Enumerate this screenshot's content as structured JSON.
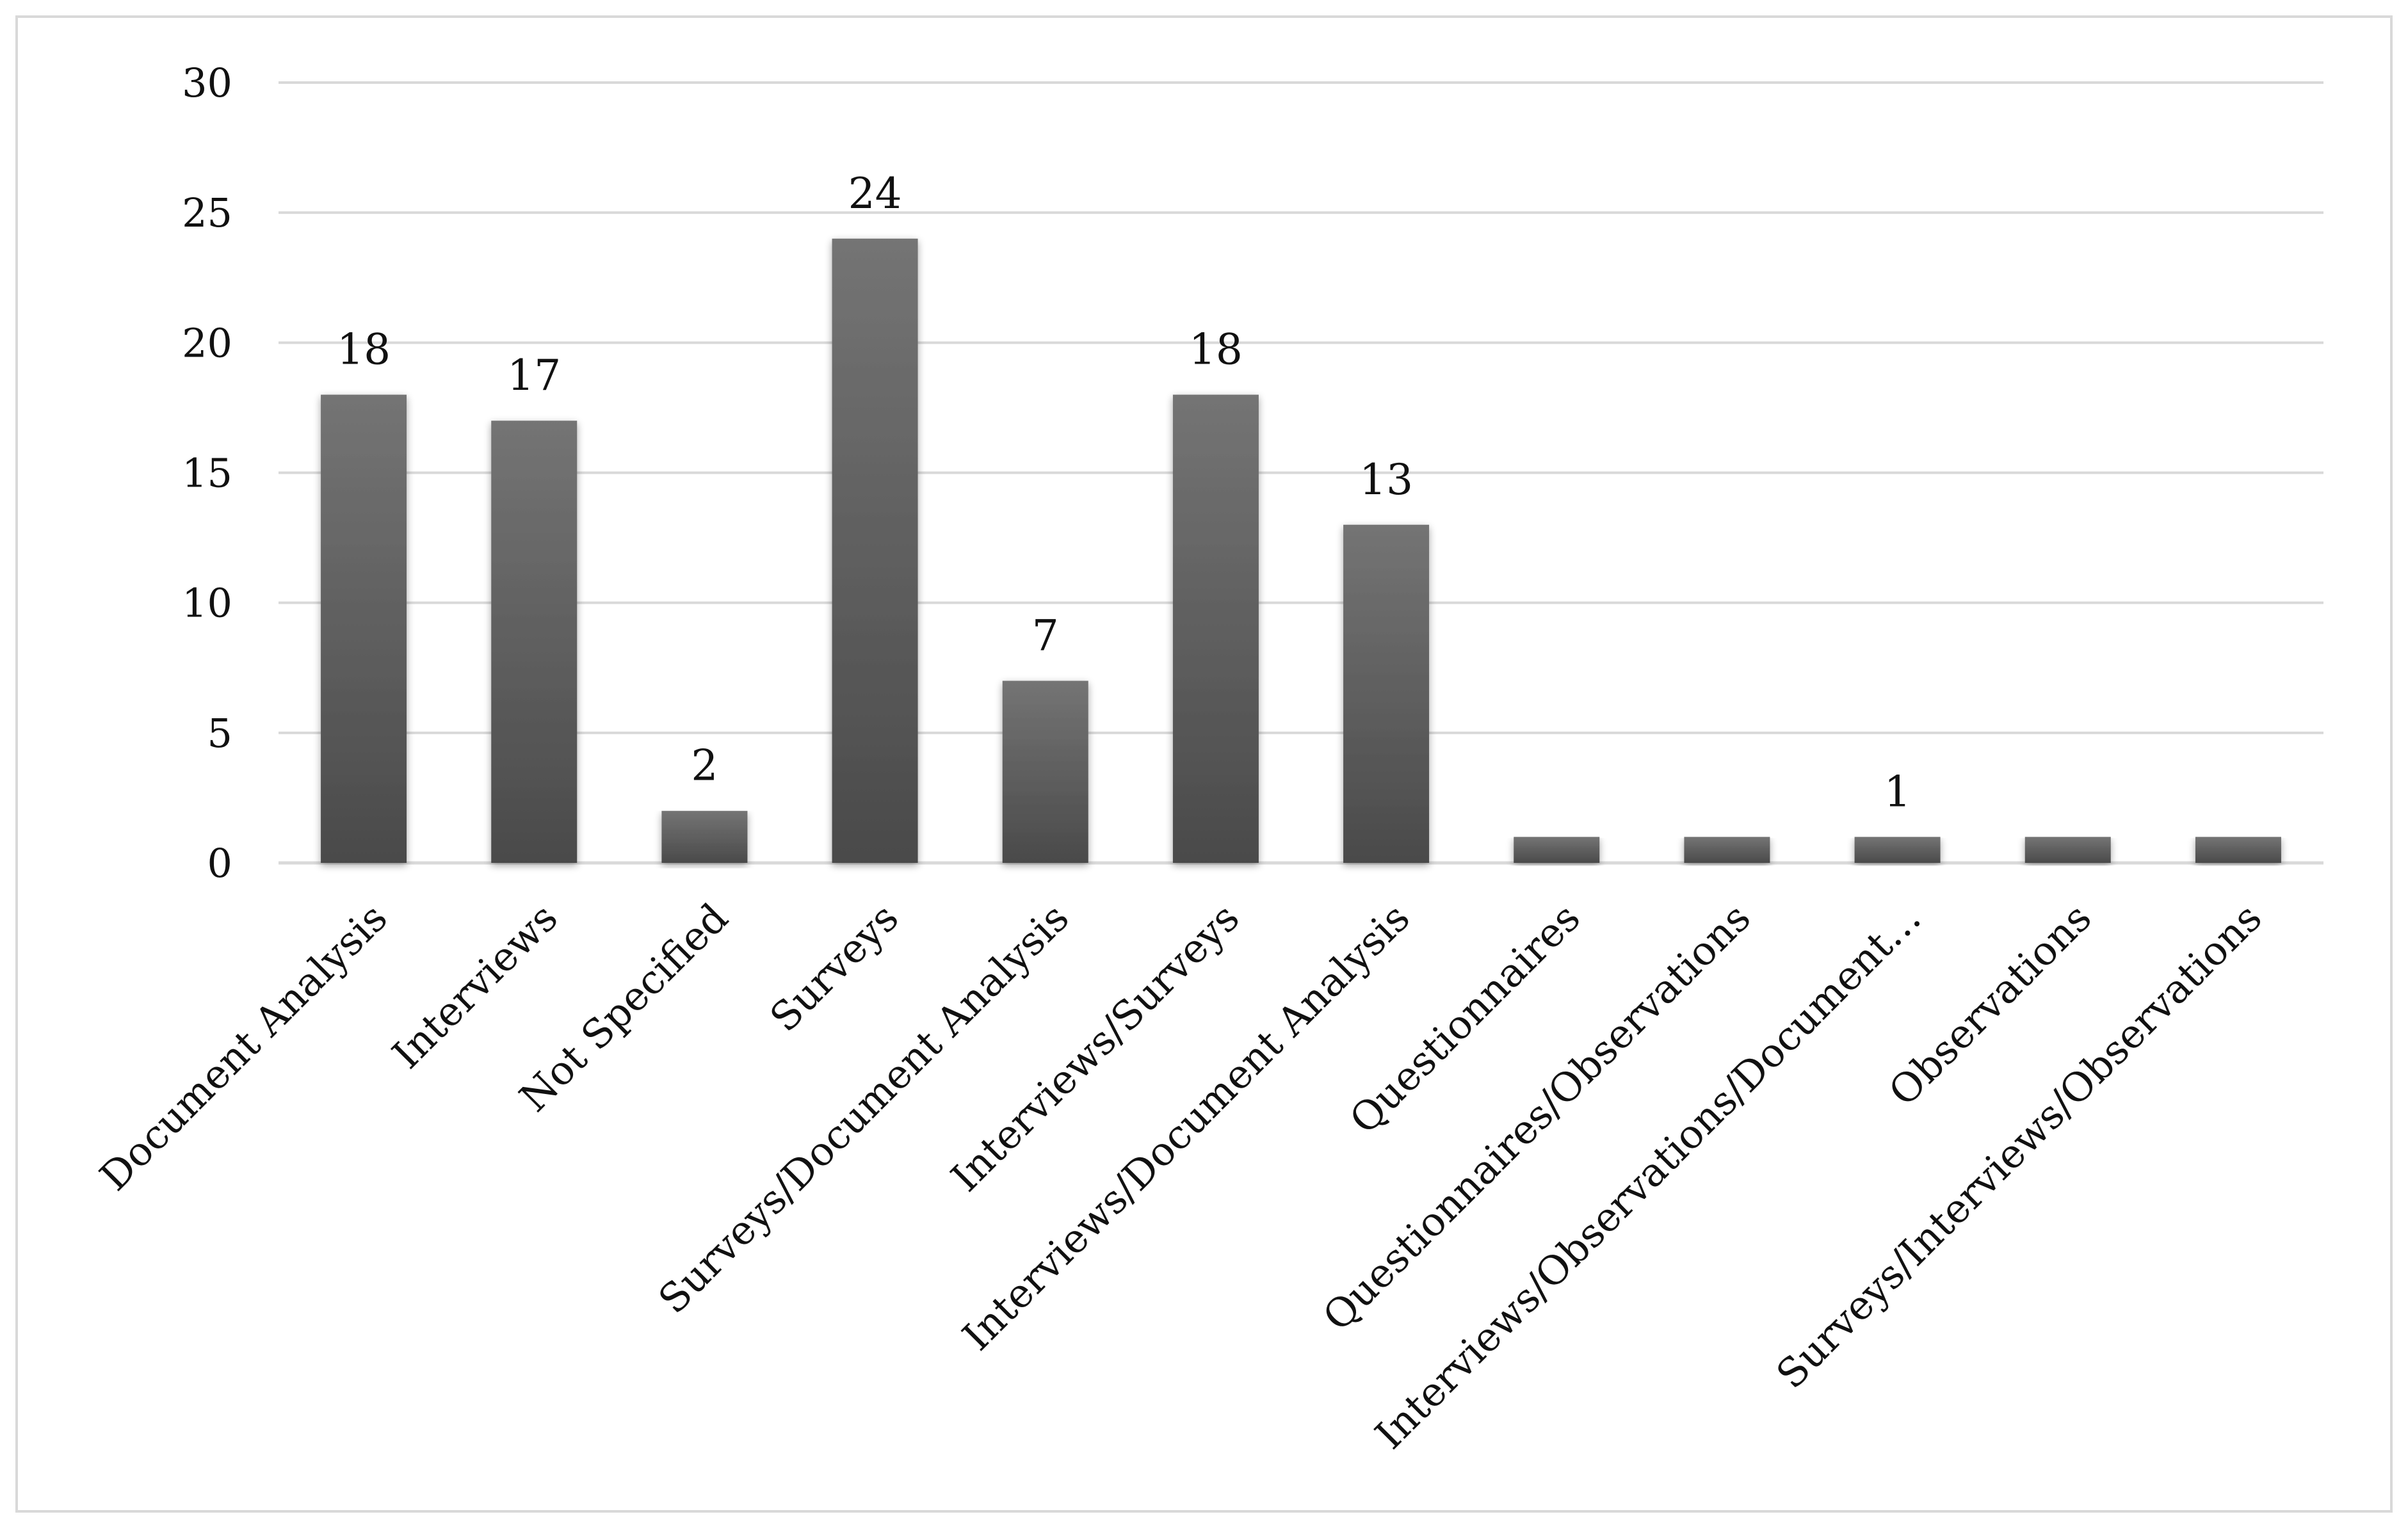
{
  "chart_data": {
    "type": "bar",
    "title": "",
    "xlabel": "",
    "ylabel": "",
    "ylim": [
      0,
      30
    ],
    "yticks": [
      0,
      5,
      10,
      15,
      20,
      25,
      30
    ],
    "grid": true,
    "legend": "none",
    "categories": [
      "Document Analysis",
      "Interviews",
      "Not Specified",
      "Surveys",
      "Surveys/Document Analysis",
      "Interviews/Surveys",
      "Interviews/Document Analysis",
      "Questionnaires",
      "Questionnaires/Observations",
      "Interviews/Observations/Document…",
      "Observations",
      "Surveys/Interviews/Observations"
    ],
    "values": [
      18,
      17,
      2,
      24,
      7,
      18,
      13,
      1,
      1,
      1,
      1,
      1
    ],
    "data_labels": [
      "18",
      "17",
      "2",
      "24",
      "7",
      "18",
      "13",
      "",
      "",
      "1",
      "",
      ""
    ],
    "colors": {
      "bar_top": "#747474",
      "bar_bottom": "#4a4a4a",
      "grid": "#d9d9d9",
      "axis": "#d9d9d9"
    }
  }
}
